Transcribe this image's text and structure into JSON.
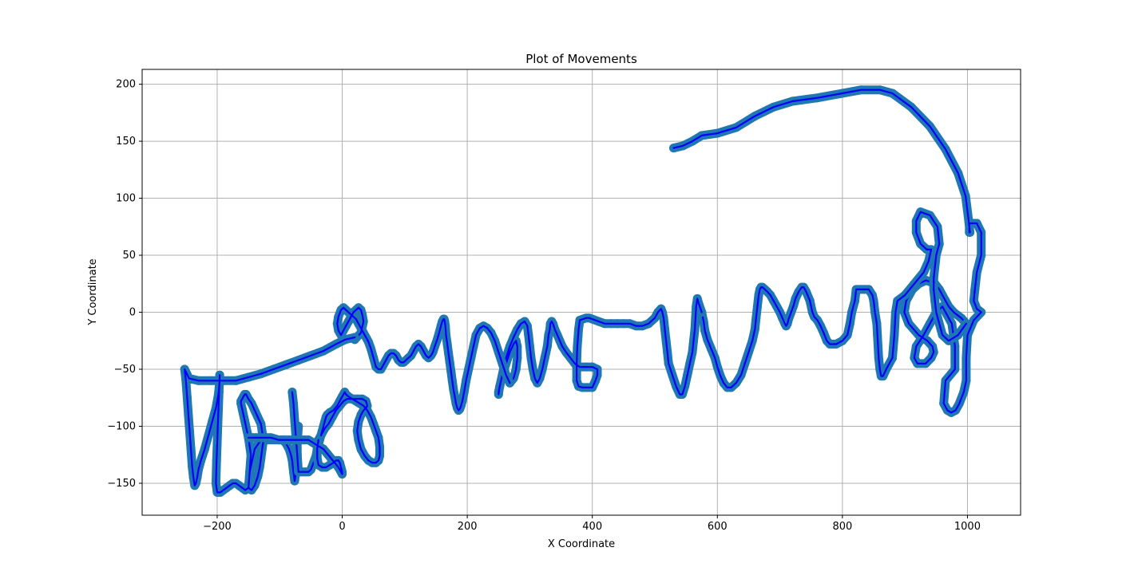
{
  "chart_data": {
    "type": "line",
    "title": "Plot of Movements",
    "xlabel": "X Coordinate",
    "ylabel": "Y Coordinate",
    "xlim": [
      -320,
      1085
    ],
    "ylim": [
      -178,
      213
    ],
    "xticks": [
      -200,
      0,
      200,
      400,
      600,
      800,
      1000
    ],
    "yticks": [
      -150,
      -100,
      -50,
      0,
      50,
      100,
      150,
      200
    ],
    "xtick_labels": [
      "−200",
      "0",
      "200",
      "400",
      "600",
      "800",
      "1000"
    ],
    "ytick_labels": [
      "−150",
      "−100",
      "−50",
      "0",
      "50",
      "100",
      "150",
      "200"
    ],
    "grid": true,
    "colors": {
      "marker": "#1f77b4",
      "line": "#0000ff",
      "grid": "#b0b0b0"
    },
    "series": [
      {
        "style": "markers-and-line",
        "x": [
          530,
          545,
          560,
          575,
          600,
          630,
          660,
          690,
          720,
          760,
          800,
          830,
          860,
          880,
          910,
          940,
          965,
          985,
          997,
          1002,
          1004,
          1003,
          1003,
          1015,
          1022,
          1022,
          1015,
          1012,
          1010,
          1015,
          1022,
          1010,
          1000,
          998,
          998,
          994,
          987,
          981,
          974,
          968,
          962,
          965,
          980,
          980,
          975,
          960,
          950,
          940,
          930,
          918,
          915,
          920,
          933,
          942,
          946,
          944,
          936,
          922,
          906,
          899,
          902,
          912,
          922,
          934,
          948,
          955,
          960,
          965,
          970,
          978,
          990,
          998
        ],
        "y": [
          144,
          146,
          150,
          155,
          157,
          162,
          172,
          180,
          185,
          188,
          192,
          195,
          195,
          192,
          180,
          163,
          143,
          122,
          102,
          80,
          70,
          70,
          78,
          78,
          70,
          50,
          35,
          20,
          10,
          3,
          0,
          -7,
          -20,
          -40,
          -60,
          -70,
          -80,
          -86,
          -88,
          -86,
          -80,
          -60,
          -50,
          -30,
          -10,
          5,
          0,
          -10,
          -20,
          -30,
          -40,
          -45,
          -45,
          -40,
          -35,
          -30,
          -25,
          -20,
          -10,
          0,
          10,
          20,
          25,
          28,
          25,
          20,
          15,
          10,
          5,
          0,
          -5,
          -10
        ]
      },
      {
        "style": "markers-and-line",
        "x": [
          998,
          985,
          970,
          960,
          955,
          950,
          948,
          946,
          946,
          950,
          955,
          952,
          940,
          925,
          918,
          918,
          925,
          935,
          942,
          938,
          930,
          915,
          900,
          888,
          885,
          883,
          880,
          870,
          865,
          862,
          860,
          858,
          856,
          855,
          852,
          850,
          848,
          842,
          835,
          828,
          822,
          820,
          815,
          812,
          808,
          800,
          790,
          780,
          775,
          770,
          765,
          760,
          755,
          752,
          748,
          742,
          738,
          735,
          730,
          725,
          722,
          718,
          714,
          712,
          710,
          708,
          704,
          700,
          695,
          690,
          685,
          680,
          676,
          672,
          670,
          668,
          666,
          664,
          662,
          660,
          656,
          650,
          644,
          638,
          630,
          622,
          616,
          610,
          605,
          600,
          596,
          590,
          584,
          580,
          578,
          575
        ],
        "y": [
          -10,
          -20,
          -25,
          -20,
          -10,
          0,
          10,
          20,
          30,
          50,
          60,
          75,
          85,
          88,
          80,
          70,
          60,
          55,
          55,
          45,
          35,
          25,
          15,
          10,
          0,
          -20,
          -40,
          -50,
          -56,
          -56,
          -50,
          -40,
          -20,
          -10,
          0,
          10,
          15,
          20,
          20,
          20,
          20,
          10,
          0,
          -10,
          -20,
          -25,
          -28,
          -28,
          -25,
          -18,
          -12,
          -7,
          -4,
          0,
          10,
          18,
          22,
          22,
          18,
          12,
          6,
          0,
          -6,
          -10,
          -12,
          -10,
          -5,
          0,
          5,
          10,
          15,
          18,
          20,
          22,
          22,
          20,
          15,
          5,
          -5,
          -15,
          -25,
          -35,
          -45,
          -55,
          -62,
          -66,
          -66,
          -62,
          -56,
          -48,
          -40,
          -32,
          -24,
          -16,
          -8,
          0
        ]
      },
      {
        "style": "markers-and-line",
        "x": [
          575,
          570,
          568,
          566,
          565,
          564,
          562,
          560,
          556,
          552,
          548,
          544,
          540,
          534,
          528,
          522,
          520,
          518,
          516,
          514,
          512,
          510,
          505,
          500,
          490,
          480,
          470,
          460,
          450,
          440,
          430,
          420,
          410,
          400,
          395,
          390,
          385,
          380,
          378,
          376,
          375,
          375,
          378,
          384,
          392,
          400,
          405,
          408,
          408,
          400,
          390,
          380,
          372,
          365,
          358,
          352,
          348,
          344,
          340,
          337,
          335,
          333,
          332,
          330,
          328,
          324,
          320,
          316,
          312,
          308,
          305,
          302,
          300,
          298,
          296,
          292,
          286,
          280,
          274,
          268,
          262,
          258,
          254,
          251,
          250,
          250,
          252,
          256,
          262,
          268,
          274,
          278,
          280,
          280,
          278,
          274,
          268
        ],
        "y": [
          0,
          8,
          12,
          5,
          -5,
          -15,
          -25,
          -35,
          -45,
          -55,
          -65,
          -72,
          -72,
          -65,
          -55,
          -45,
          -35,
          -25,
          -15,
          -5,
          0,
          3,
          0,
          -5,
          -10,
          -12,
          -12,
          -10,
          -10,
          -10,
          -10,
          -10,
          -8,
          -6,
          -5,
          -5,
          -6,
          -7,
          -15,
          -30,
          -45,
          -60,
          -65,
          -66,
          -66,
          -66,
          -60,
          -55,
          -50,
          -48,
          -48,
          -48,
          -45,
          -40,
          -35,
          -30,
          -25,
          -20,
          -15,
          -10,
          -8,
          -10,
          -15,
          -20,
          -30,
          -40,
          -50,
          -58,
          -62,
          -58,
          -50,
          -40,
          -30,
          -20,
          -12,
          -8,
          -10,
          -15,
          -22,
          -30,
          -40,
          -50,
          -60,
          -68,
          -72,
          -70,
          -65,
          -55,
          -45,
          -35,
          -28,
          -25,
          -30,
          -40,
          -50,
          -58,
          -62
        ]
      },
      {
        "style": "markers-and-line",
        "x": [
          268,
          262,
          256,
          250,
          244,
          238,
          232,
          226,
          220,
          214,
          210,
          206,
          202,
          198,
          195,
          192,
          190,
          188,
          186,
          184,
          182,
          180,
          178,
          176,
          174,
          172,
          170,
          168,
          166,
          165,
          164,
          163,
          162,
          160,
          158,
          155,
          152,
          148,
          145,
          142,
          138,
          134,
          130,
          126,
          122,
          118,
          114,
          110,
          106,
          102,
          98,
          94,
          90,
          86,
          82,
          78,
          74,
          70,
          66,
          62,
          58,
          54,
          50,
          46,
          42,
          38,
          34,
          30,
          26,
          22,
          18,
          14,
          10,
          6,
          2,
          -2,
          -6,
          -8,
          -6,
          -2,
          2,
          6,
          10,
          14,
          18,
          22,
          26,
          30,
          32,
          34,
          30,
          20
        ],
        "y": [
          -62,
          -55,
          -45,
          -35,
          -25,
          -18,
          -14,
          -12,
          -14,
          -20,
          -30,
          -40,
          -50,
          -60,
          -70,
          -78,
          -82,
          -85,
          -86,
          -84,
          -80,
          -74,
          -68,
          -60,
          -52,
          -44,
          -36,
          -28,
          -20,
          -12,
          -8,
          -6,
          -6,
          -8,
          -12,
          -18,
          -24,
          -30,
          -35,
          -38,
          -40,
          -38,
          -34,
          -30,
          -28,
          -30,
          -34,
          -38,
          -40,
          -42,
          -44,
          -44,
          -42,
          -38,
          -36,
          -36,
          -38,
          -42,
          -46,
          -50,
          -50,
          -48,
          -40,
          -32,
          -26,
          -22,
          -18,
          -14,
          -10,
          -6,
          -4,
          -2,
          0,
          2,
          4,
          2,
          -4,
          -10,
          -16,
          -20,
          -16,
          -12,
          -8,
          -4,
          0,
          2,
          4,
          2,
          -2,
          -8,
          -18,
          -24
        ]
      },
      {
        "style": "markers-and-line",
        "x": [
          20,
          5,
          -10,
          -30,
          -50,
          -70,
          -90,
          -110,
          -130,
          -150,
          -170,
          -190,
          -210,
          -230,
          -245,
          -252,
          -250,
          -248,
          -246,
          -244,
          -242,
          -240,
          -238,
          -236,
          -234,
          -232,
          -230,
          -226,
          -220,
          -214,
          -208,
          -202,
          -198,
          -196,
          -196,
          -197,
          -198,
          -199,
          -200,
          -201,
          -202,
          -200,
          -195,
          -190,
          -185,
          -180,
          -175,
          -170,
          -165,
          -160,
          -155,
          -150,
          -148,
          -146,
          -150,
          -156,
          -160,
          -162,
          -162,
          -160,
          -158,
          -156,
          -154,
          -152,
          -150,
          -145,
          -140,
          -135,
          -130,
          -128,
          -126,
          -128,
          -130,
          -132,
          -135,
          -140,
          -145,
          -150,
          -148,
          -140,
          -130,
          -120,
          -110,
          -100,
          -95,
          -90,
          -85,
          -82,
          -80,
          -78,
          -76,
          -74,
          -72,
          -72,
          -70
        ],
        "y": [
          -22,
          -24,
          -28,
          -34,
          -38,
          -42,
          -46,
          -50,
          -54,
          -57,
          -60,
          -60,
          -60,
          -60,
          -58,
          -50,
          -60,
          -75,
          -90,
          -105,
          -120,
          -135,
          -145,
          -152,
          -150,
          -145,
          -138,
          -130,
          -120,
          -108,
          -96,
          -84,
          -72,
          -60,
          -55,
          -70,
          -85,
          -100,
          -115,
          -130,
          -150,
          -158,
          -158,
          -156,
          -154,
          -152,
          -150,
          -150,
          -152,
          -154,
          -156,
          -154,
          -140,
          -125,
          -110,
          -95,
          -85,
          -80,
          -78,
          -76,
          -74,
          -72,
          -72,
          -74,
          -76,
          -80,
          -86,
          -92,
          -98,
          -105,
          -112,
          -120,
          -128,
          -136,
          -144,
          -152,
          -156,
          -154,
          -140,
          -120,
          -112,
          -112,
          -112,
          -112,
          -112,
          -115,
          -120,
          -125,
          -130,
          -140,
          -148,
          -140,
          -130,
          -115,
          -100
        ]
      },
      {
        "style": "markers-and-line",
        "x": [
          -80,
          -78,
          -76,
          -74,
          -72,
          -70,
          -66,
          -62,
          -58,
          -54,
          -50,
          -46,
          -42,
          -40,
          -38,
          -36,
          -34,
          -32,
          -30,
          -28,
          -26,
          -24,
          -20,
          -14,
          -8,
          -4,
          0,
          2,
          4,
          6,
          10,
          16,
          22,
          28,
          34,
          40,
          46,
          50,
          54,
          58,
          60,
          60,
          58,
          54,
          48,
          42,
          36,
          30,
          26,
          24,
          26,
          30,
          34,
          38,
          40,
          38,
          32,
          24,
          16,
          8,
          2,
          -4,
          -10,
          -16,
          -22,
          -28,
          -34,
          -38
        ],
        "y": [
          -70,
          -80,
          -95,
          -110,
          -125,
          -140,
          -140,
          -140,
          -140,
          -140,
          -138,
          -132,
          -126,
          -120,
          -116,
          -112,
          -108,
          -104,
          -100,
          -96,
          -92,
          -90,
          -88,
          -86,
          -82,
          -78,
          -74,
          -72,
          -70,
          -72,
          -74,
          -76,
          -78,
          -80,
          -82,
          -86,
          -92,
          -98,
          -104,
          -110,
          -118,
          -126,
          -130,
          -132,
          -132,
          -130,
          -126,
          -120,
          -112,
          -104,
          -96,
          -90,
          -86,
          -84,
          -82,
          -78,
          -76,
          -76,
          -76,
          -76,
          -78,
          -82,
          -86,
          -92,
          -98,
          -102,
          -108,
          -112
        ]
      },
      {
        "style": "markers-and-line",
        "x": [
          -38,
          -40,
          -40,
          -38,
          -32,
          -26,
          -20,
          -14,
          -10,
          -6,
          -4,
          -2,
          0,
          0,
          -2,
          -6,
          -12,
          -18,
          -24,
          -30,
          -36,
          -42,
          -48,
          -54,
          -60,
          -66,
          -72,
          -78,
          -84,
          -90,
          -96,
          -102,
          -108,
          -114,
          -120,
          -126,
          -132,
          -138,
          -144,
          -150
        ],
        "y": [
          -112,
          -120,
          -128,
          -134,
          -136,
          -136,
          -134,
          -132,
          -130,
          -130,
          -132,
          -136,
          -140,
          -142,
          -140,
          -136,
          -132,
          -128,
          -124,
          -120,
          -118,
          -116,
          -114,
          -112,
          -112,
          -112,
          -112,
          -112,
          -112,
          -112,
          -112,
          -112,
          -111,
          -110,
          -110,
          -110,
          -110,
          -110,
          -110,
          -110
        ]
      }
    ]
  }
}
